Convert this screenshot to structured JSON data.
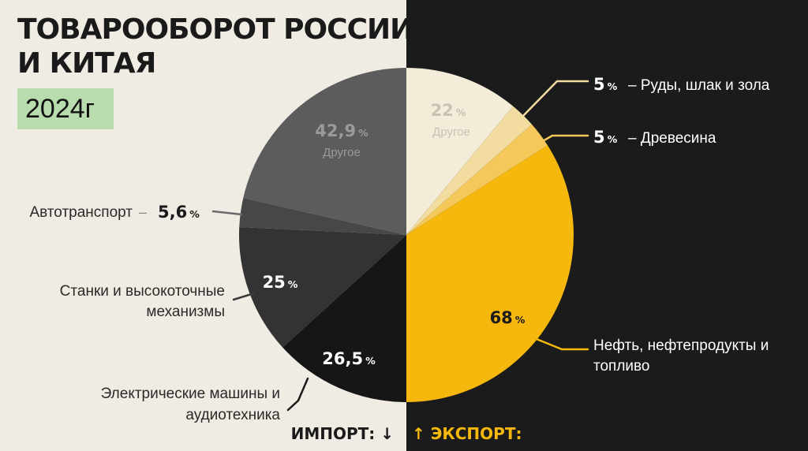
{
  "title": {
    "line1": "ТОВАРООБОРОТ РОССИИ",
    "line2": "И КИТАЯ"
  },
  "year": "2024г",
  "legend": {
    "import": "ИМПОРТ: ↓",
    "export": "↑ ЭКСПОРТ:"
  },
  "colors": {
    "left_bg": "#f0ece4",
    "right_bg": "#1b1b1b",
    "export_accent": "#f6b80d",
    "year_badge": "#b8dcae"
  },
  "chart_data": {
    "type": "pie",
    "charts": [
      {
        "side": "import",
        "unit": "%",
        "slices": [
          {
            "label": "Другое",
            "value": 42.9,
            "value_text": "42,9",
            "color": "#5c5c5c"
          },
          {
            "label": "Автотранспорт",
            "value": 5.6,
            "value_text": "5,6",
            "color": "#474747"
          },
          {
            "label": "Станки и высокоточные механизмы",
            "value": 25,
            "value_text": "25",
            "color": "#333333"
          },
          {
            "label": "Электрические машины и аудиотехника",
            "value": 26.5,
            "value_text": "26,5",
            "color": "#161616"
          }
        ]
      },
      {
        "side": "export",
        "unit": "%",
        "slices": [
          {
            "label": "Другое",
            "value": 22,
            "value_text": "22",
            "color": "#f2ecd9"
          },
          {
            "label": "Руды, шлак и зола",
            "value": 5,
            "value_text": "5",
            "color": "#f3dca0"
          },
          {
            "label": "Древесина",
            "value": 5,
            "value_text": "5",
            "color": "#f4c85a"
          },
          {
            "label": "Нефть, нефтепродукты и топливо",
            "value": 68,
            "value_text": "68",
            "color": "#f6b80d"
          }
        ]
      }
    ]
  }
}
